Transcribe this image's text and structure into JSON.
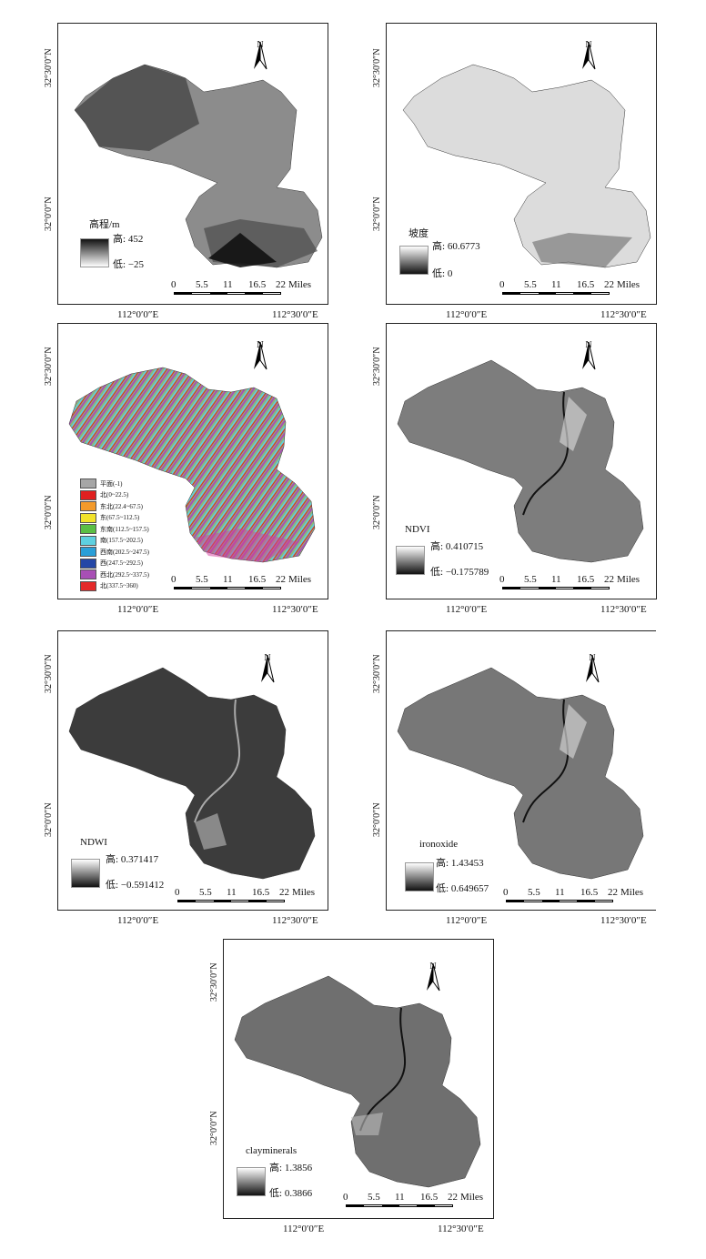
{
  "coords": {
    "lat_top": "32°30′0″N",
    "lat_mid": "32°0′0″N",
    "lon_left": "112°0′0″E",
    "lon_right": "112°30′0″E"
  },
  "north_label": "N",
  "scale_ticks": [
    "0",
    "5.5",
    "11",
    "16.5",
    "22"
  ],
  "scale_unit": "Miles",
  "legend_high_prefix": "高:",
  "legend_low_prefix": "低:",
  "maps": [
    {
      "id": "elevation",
      "title": "高程/m",
      "high": "452",
      "low": "−25",
      "shade": "#8a8a8a",
      "dark": "#222"
    },
    {
      "id": "slope",
      "title": "坡度",
      "high": "60.6773",
      "low": "0",
      "shade": "#d8d8d8",
      "dark": "#333"
    },
    {
      "id": "aspect",
      "title": "",
      "high": "",
      "low": "",
      "shade": "#8fb47a",
      "dark": "#7b4fa3"
    },
    {
      "id": "ndvi",
      "title": "NDVI",
      "high": "0.410715",
      "low": "−0.175789",
      "shade": "#7d7d7d",
      "dark": "#111"
    },
    {
      "id": "ndwi",
      "title": "NDWI",
      "high": "0.371417",
      "low": "−0.591412",
      "shade": "#3c3c3c",
      "dark": "#151515"
    },
    {
      "id": "ironoxide",
      "title": "ironoxide",
      "high": "1.43453",
      "low": "0.649657",
      "shade": "#777",
      "dark": "#111"
    },
    {
      "id": "clayminerals",
      "title": "clayminerals",
      "high": "1.3856",
      "low": "0.3866",
      "shade": "#6f6f6f",
      "dark": "#111"
    }
  ],
  "aspect_legend": [
    {
      "label": "平面(-1)",
      "color": "#a6a6a6"
    },
    {
      "label": "北(0~22.5)",
      "color": "#e02020"
    },
    {
      "label": "东北(22.4~67.5)",
      "color": "#f39a2b"
    },
    {
      "label": "东(67.5~112.5)",
      "color": "#f2e22a"
    },
    {
      "label": "东南(112.5~157.5)",
      "color": "#5bbf45"
    },
    {
      "label": "南(157.5~202.5)",
      "color": "#5ed0e0"
    },
    {
      "label": "西南(202.5~247.5)",
      "color": "#2a9fd8"
    },
    {
      "label": "西(247.5~292.5)",
      "color": "#2447a6"
    },
    {
      "label": "西北(292.5~337.5)",
      "color": "#a84fb5"
    },
    {
      "label": "北(337.5~360)",
      "color": "#e42a2a"
    }
  ]
}
